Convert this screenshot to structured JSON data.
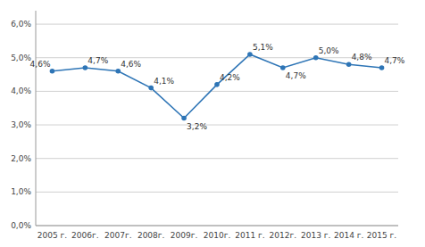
{
  "chart_data": {
    "type": "line",
    "categories": [
      "2005 г.",
      "2006г.",
      "2007г.",
      "2008г.",
      "2009г.",
      "2010г.",
      "2011 г.",
      "2012г.",
      "2013 г.",
      "2014 г.",
      "2015 г."
    ],
    "values": [
      4.6,
      4.7,
      4.6,
      4.1,
      3.2,
      4.2,
      5.1,
      4.7,
      5.0,
      4.8,
      4.7
    ],
    "value_labels": [
      "4,6%",
      "4,7%",
      "4,6%",
      "4,1%",
      "3,2%",
      "4,2%",
      "5,1%",
      "4,7%",
      "5,0%",
      "4,8%",
      "4,7%"
    ],
    "data_labels": true,
    "color": "#2E75B6",
    "marker": "circle",
    "ylim": [
      0.0,
      6.4
    ],
    "yticks": [
      {
        "value": 0.0,
        "label": "0,0%"
      },
      {
        "value": 1.0,
        "label": "1,0%"
      },
      {
        "value": 2.0,
        "label": "2,0%"
      },
      {
        "value": 3.0,
        "label": "3,0%"
      },
      {
        "value": 4.0,
        "label": "4,0%"
      },
      {
        "value": 5.0,
        "label": "5,0%"
      },
      {
        "value": 6.0,
        "label": "6,0%"
      }
    ],
    "grid": true
  }
}
